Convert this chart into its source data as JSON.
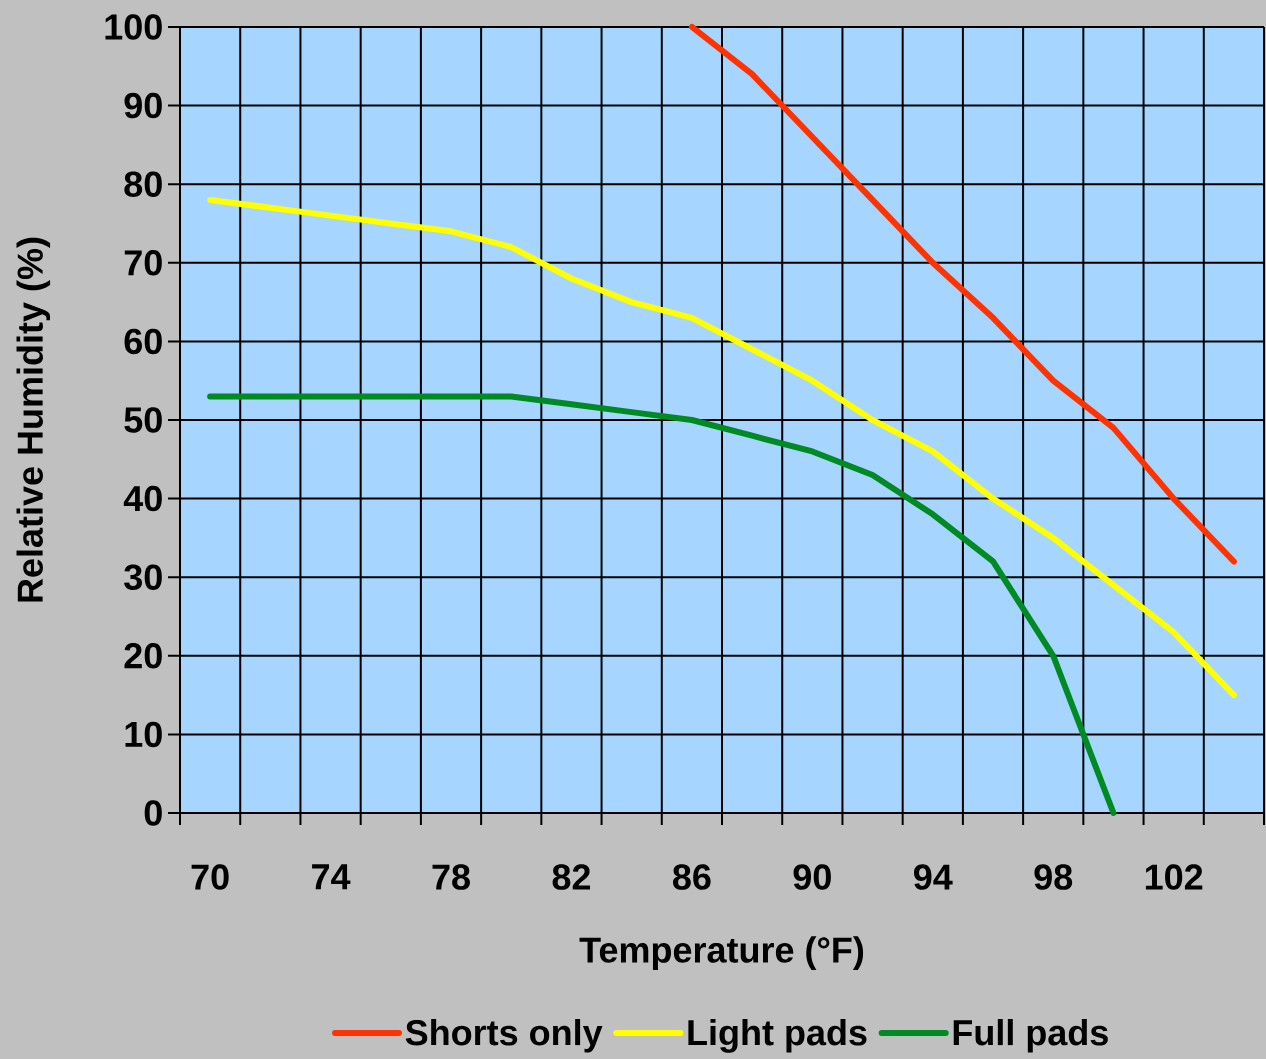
{
  "chart_data": {
    "type": "line",
    "xlabel": "Temperature (°F)",
    "ylabel": "Relative Humidity (%)",
    "categories": [
      "70",
      null,
      "74",
      null,
      "78",
      null,
      "82",
      null,
      "86",
      null,
      "90",
      null,
      "94",
      null,
      "98",
      null,
      "102",
      null
    ],
    "series": [
      {
        "name": "Shorts only",
        "color": "#ff3300",
        "values": [
          null,
          null,
          null,
          null,
          null,
          null,
          null,
          null,
          100,
          94,
          86,
          78,
          70,
          63,
          55,
          49,
          40,
          32
        ]
      },
      {
        "name": "Light pads",
        "color": "#ffff00",
        "values": [
          78,
          77,
          76,
          75,
          74,
          72,
          68,
          65,
          63,
          59,
          55,
          50,
          46,
          40,
          35,
          29,
          23,
          15
        ]
      },
      {
        "name": "Full pads",
        "color": "#008a24",
        "values": [
          53,
          53,
          53,
          53,
          53,
          53,
          52,
          51,
          50,
          48,
          46,
          43,
          38,
          32,
          20,
          0,
          null,
          null
        ]
      }
    ],
    "ylim": [
      0,
      100
    ],
    "yticks": [
      0,
      10,
      20,
      30,
      40,
      50,
      60,
      70,
      80,
      90,
      100
    ],
    "grid": true,
    "legend": "bottom"
  }
}
